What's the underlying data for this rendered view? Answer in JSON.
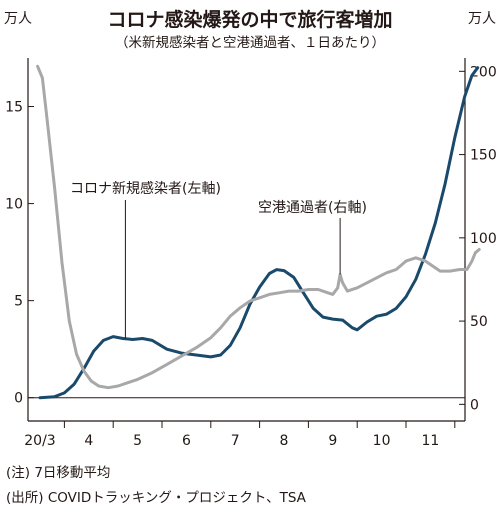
{
  "header": {
    "title": "コロナ感染爆発の中で旅行客増加",
    "subtitle": "（米新規感染者と空港通過者、１日あたり）",
    "left_unit": "万人",
    "right_unit": "万人"
  },
  "footer": {
    "note": "(注) 7日移動平均",
    "source": "(出所) COVIDトラッキング・プロジェクト、TSA"
  },
  "colors": {
    "cases": "#1a4a6b",
    "airport": "#a8a8a8",
    "axis": "#231815"
  },
  "chart_data": {
    "type": "line",
    "title": "コロナ感染爆発の中で旅行客増加",
    "subtitle": "（米新規感染者と空港通過者、１日あたり）",
    "x_ticks": [
      "20/3",
      "4",
      "5",
      "6",
      "7",
      "8",
      "9",
      "10",
      "11"
    ],
    "y_left": {
      "unit": "万人",
      "ticks": [
        "0",
        "5",
        "10",
        "15"
      ],
      "range": [
        -1.2,
        17.5
      ]
    },
    "y_right": {
      "unit": "万人",
      "ticks": [
        "0",
        "50",
        "100",
        "150",
        "200"
      ],
      "range": [
        -10,
        208
      ]
    },
    "series": [
      {
        "name": "コロナ新規感染者(左軸)",
        "axis": "left",
        "color": "#1a4a6b",
        "points": [
          [
            0.0,
            0
          ],
          [
            0.3,
            0.05
          ],
          [
            0.5,
            0.25
          ],
          [
            0.7,
            0.7
          ],
          [
            0.9,
            1.5
          ],
          [
            1.1,
            2.4
          ],
          [
            1.3,
            2.95
          ],
          [
            1.5,
            3.15
          ],
          [
            1.7,
            3.05
          ],
          [
            1.9,
            3.0
          ],
          [
            2.1,
            3.05
          ],
          [
            2.3,
            2.95
          ],
          [
            2.6,
            2.5
          ],
          [
            2.9,
            2.3
          ],
          [
            3.2,
            2.2
          ],
          [
            3.5,
            2.1
          ],
          [
            3.7,
            2.2
          ],
          [
            3.9,
            2.7
          ],
          [
            4.1,
            3.6
          ],
          [
            4.3,
            4.8
          ],
          [
            4.5,
            5.7
          ],
          [
            4.7,
            6.4
          ],
          [
            4.85,
            6.6
          ],
          [
            5.0,
            6.55
          ],
          [
            5.2,
            6.2
          ],
          [
            5.4,
            5.4
          ],
          [
            5.6,
            4.6
          ],
          [
            5.8,
            4.15
          ],
          [
            6.0,
            4.05
          ],
          [
            6.2,
            4.0
          ],
          [
            6.4,
            3.6
          ],
          [
            6.5,
            3.5
          ],
          [
            6.7,
            3.9
          ],
          [
            6.9,
            4.2
          ],
          [
            7.1,
            4.3
          ],
          [
            7.3,
            4.6
          ],
          [
            7.5,
            5.2
          ],
          [
            7.7,
            6.1
          ],
          [
            7.9,
            7.4
          ],
          [
            8.1,
            9.0
          ],
          [
            8.3,
            11.0
          ],
          [
            8.5,
            13.4
          ],
          [
            8.7,
            15.5
          ],
          [
            8.85,
            16.6
          ],
          [
            8.97,
            17.0
          ]
        ]
      },
      {
        "name": "空港通過者(右軸)",
        "axis": "right",
        "color": "#a8a8a8",
        "points": [
          [
            -0.05,
            203
          ],
          [
            0.05,
            196
          ],
          [
            0.15,
            170
          ],
          [
            0.3,
            130
          ],
          [
            0.45,
            85
          ],
          [
            0.6,
            50
          ],
          [
            0.75,
            30
          ],
          [
            0.9,
            20
          ],
          [
            1.05,
            14
          ],
          [
            1.2,
            11
          ],
          [
            1.4,
            10
          ],
          [
            1.6,
            11
          ],
          [
            1.8,
            13
          ],
          [
            2.0,
            15
          ],
          [
            2.3,
            19
          ],
          [
            2.6,
            24
          ],
          [
            2.9,
            29
          ],
          [
            3.2,
            34
          ],
          [
            3.5,
            40
          ],
          [
            3.7,
            46
          ],
          [
            3.9,
            53
          ],
          [
            4.1,
            58
          ],
          [
            4.3,
            62
          ],
          [
            4.5,
            64
          ],
          [
            4.7,
            66
          ],
          [
            4.9,
            67
          ],
          [
            5.1,
            68
          ],
          [
            5.3,
            68
          ],
          [
            5.5,
            69
          ],
          [
            5.7,
            69
          ],
          [
            5.9,
            67
          ],
          [
            6.0,
            66
          ],
          [
            6.1,
            70
          ],
          [
            6.15,
            78
          ],
          [
            6.2,
            73
          ],
          [
            6.3,
            68
          ],
          [
            6.5,
            70
          ],
          [
            6.7,
            73
          ],
          [
            6.9,
            76
          ],
          [
            7.1,
            79
          ],
          [
            7.3,
            81
          ],
          [
            7.5,
            86
          ],
          [
            7.7,
            88
          ],
          [
            7.9,
            86
          ],
          [
            8.0,
            84
          ],
          [
            8.2,
            80
          ],
          [
            8.4,
            80
          ],
          [
            8.6,
            81
          ],
          [
            8.75,
            81
          ],
          [
            8.85,
            86
          ],
          [
            8.92,
            91
          ],
          [
            9.0,
            93
          ]
        ]
      }
    ],
    "annotations": [
      {
        "text": "コロナ新規感染者(左軸)",
        "series": 0
      },
      {
        "text": "空港通過者(右軸)",
        "series": 1
      }
    ]
  }
}
